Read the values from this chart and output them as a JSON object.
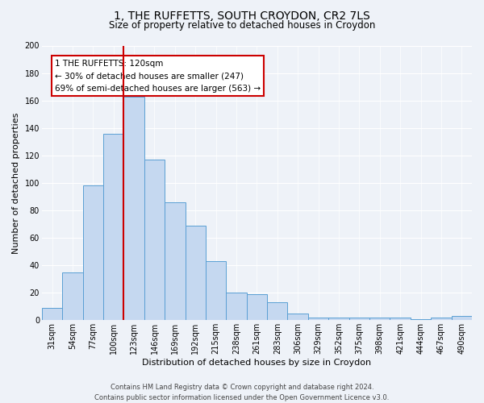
{
  "title": "1, THE RUFFETTS, SOUTH CROYDON, CR2 7LS",
  "subtitle": "Size of property relative to detached houses in Croydon",
  "xlabel": "Distribution of detached houses by size in Croydon",
  "ylabel": "Number of detached properties",
  "categories": [
    "31sqm",
    "54sqm",
    "77sqm",
    "100sqm",
    "123sqm",
    "146sqm",
    "169sqm",
    "192sqm",
    "215sqm",
    "238sqm",
    "261sqm",
    "283sqm",
    "306sqm",
    "329sqm",
    "352sqm",
    "375sqm",
    "398sqm",
    "421sqm",
    "444sqm",
    "467sqm",
    "490sqm"
  ],
  "values": [
    9,
    35,
    98,
    136,
    163,
    117,
    86,
    69,
    43,
    20,
    19,
    13,
    5,
    2,
    2,
    2,
    2,
    2,
    1,
    2,
    3
  ],
  "bar_color": "#c5d8f0",
  "bar_edge_color": "#5a9fd4",
  "annotation_line1": "1 THE RUFFETTS: 120sqm",
  "annotation_line2": "← 30% of detached houses are smaller (247)",
  "annotation_line3": "69% of semi-detached houses are larger (563) →",
  "annotation_box_color": "white",
  "annotation_box_edge_color": "#cc0000",
  "vline_color": "#cc0000",
  "ylim": [
    0,
    200
  ],
  "yticks": [
    0,
    20,
    40,
    60,
    80,
    100,
    120,
    140,
    160,
    180,
    200
  ],
  "footer_line1": "Contains HM Land Registry data © Crown copyright and database right 2024.",
  "footer_line2": "Contains public sector information licensed under the Open Government Licence v3.0.",
  "background_color": "#eef2f8",
  "grid_color": "#ffffff",
  "title_fontsize": 10,
  "subtitle_fontsize": 8.5,
  "axis_label_fontsize": 8,
  "tick_fontsize": 7,
  "annotation_fontsize": 7.5,
  "footer_fontsize": 6
}
